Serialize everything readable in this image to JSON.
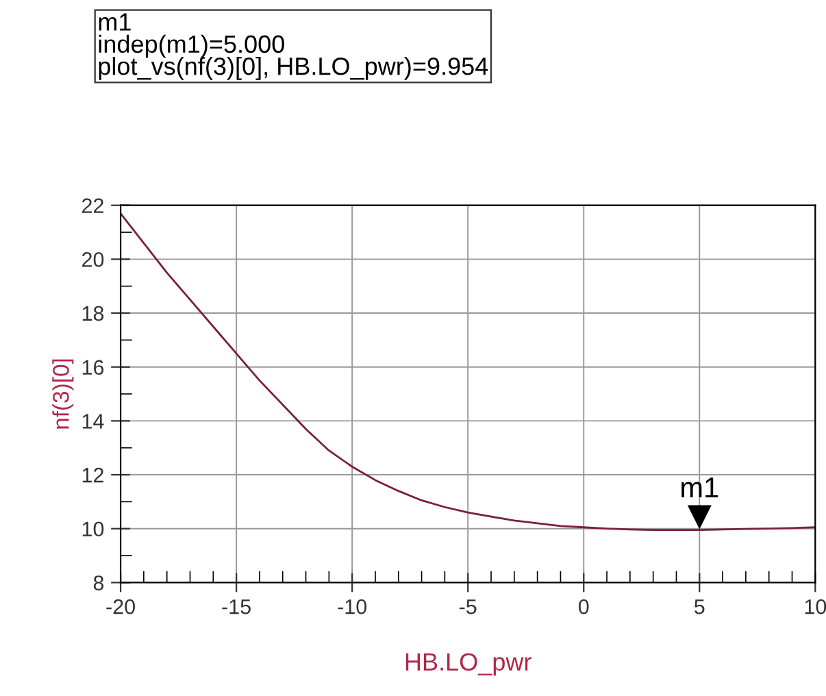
{
  "chart_data": {
    "type": "line",
    "xlabel": "HB.LO_pwr",
    "ylabel": "nf(3)[0]",
    "x": [
      -20,
      -19,
      -18,
      -17,
      -16,
      -15,
      -14,
      -13,
      -12,
      -11,
      -10,
      -9,
      -8,
      -7,
      -6,
      -5,
      -4,
      -3,
      -2,
      -1,
      0,
      1,
      2,
      3,
      4,
      5,
      6,
      7,
      8,
      9,
      10
    ],
    "series": [
      {
        "color": "#7a1f3a",
        "values": [
          21.7,
          20.6,
          19.5,
          18.5,
          17.5,
          16.5,
          15.5,
          14.6,
          13.7,
          12.9,
          12.3,
          11.8,
          11.4,
          11.05,
          10.8,
          10.6,
          10.45,
          10.3,
          10.2,
          10.1,
          10.05,
          10.0,
          9.97,
          9.95,
          9.95,
          9.954,
          9.97,
          9.99,
          10.0,
          10.02,
          10.05
        ]
      }
    ],
    "xlim": [
      -20,
      10
    ],
    "xticks": [
      -20,
      -15,
      -10,
      -5,
      0,
      5,
      10
    ],
    "ylim": [
      8,
      22
    ],
    "yticks": [
      8,
      10,
      12,
      14,
      16,
      18,
      20,
      22
    ],
    "grid": true,
    "line_style": "solid",
    "annotations": [
      "m1\nindep(m1)=5.000\nplot_vs(nf(3)[0], HB.LO_pwr)=9.954",
      {
        "text": "m1",
        "x": 5,
        "y": 9.954
      }
    ]
  }
}
